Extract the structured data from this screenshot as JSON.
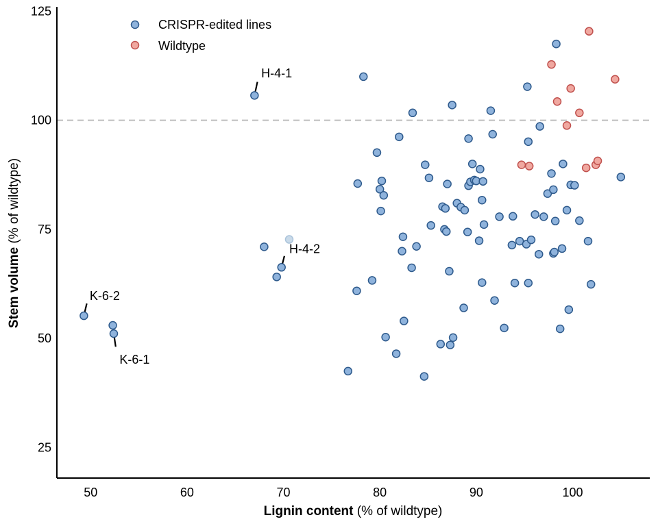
{
  "chart_data": {
    "type": "scatter",
    "xlabel_bold": "Lignin content",
    "xlabel_rest": " (% of wildtype)",
    "ylabel_bold": "Stem volume",
    "ylabel_rest": " (% of wildtype)",
    "xlim": [
      46.5,
      108
    ],
    "ylim": [
      18,
      126
    ],
    "xticks": [
      50,
      60,
      70,
      80,
      90,
      100
    ],
    "yticks": [
      25,
      50,
      75,
      100,
      125
    ],
    "reference_line_y": 100,
    "legend_position": "top-left",
    "series": [
      {
        "name": "CRISPR-edited lines",
        "color": "#8fb3dc",
        "edge": "#2e5a8c",
        "points": [
          [
            49.3,
            55.2
          ],
          [
            52.3,
            53.0
          ],
          [
            52.4,
            51.1
          ],
          [
            67.0,
            105.7
          ],
          [
            68.0,
            71.0
          ],
          [
            69.3,
            64.1
          ],
          [
            69.8,
            66.3
          ],
          [
            76.7,
            42.5
          ],
          [
            77.6,
            60.9
          ],
          [
            77.7,
            85.5
          ],
          [
            78.3,
            110.0
          ],
          [
            79.2,
            63.3
          ],
          [
            79.7,
            92.6
          ],
          [
            80.0,
            84.2
          ],
          [
            80.1,
            79.2
          ],
          [
            80.2,
            86.1
          ],
          [
            80.4,
            82.8
          ],
          [
            80.6,
            50.3
          ],
          [
            81.7,
            46.5
          ],
          [
            82.0,
            96.2
          ],
          [
            82.3,
            70.0
          ],
          [
            82.4,
            73.3
          ],
          [
            82.5,
            54.0
          ],
          [
            83.3,
            66.2
          ],
          [
            83.4,
            101.7
          ],
          [
            83.8,
            71.1
          ],
          [
            84.6,
            41.3
          ],
          [
            84.7,
            89.8
          ],
          [
            85.1,
            86.8
          ],
          [
            85.3,
            75.9
          ],
          [
            86.3,
            48.7
          ],
          [
            86.5,
            80.2
          ],
          [
            86.7,
            75.0
          ],
          [
            86.8,
            79.8
          ],
          [
            86.9,
            74.5
          ],
          [
            87.0,
            85.4
          ],
          [
            87.2,
            65.4
          ],
          [
            87.3,
            48.5
          ],
          [
            87.5,
            103.5
          ],
          [
            87.6,
            50.2
          ],
          [
            88.0,
            81.0
          ],
          [
            88.4,
            80.1
          ],
          [
            88.7,
            57.0
          ],
          [
            88.8,
            79.4
          ],
          [
            89.1,
            74.4
          ],
          [
            89.2,
            95.8
          ],
          [
            89.2,
            85.0
          ],
          [
            89.4,
            85.9
          ],
          [
            89.6,
            90.0
          ],
          [
            89.8,
            86.3
          ],
          [
            90.0,
            86.1
          ],
          [
            90.3,
            72.4
          ],
          [
            90.4,
            88.8
          ],
          [
            90.6,
            81.7
          ],
          [
            90.6,
            62.8
          ],
          [
            90.7,
            86.0
          ],
          [
            90.8,
            76.1
          ],
          [
            91.5,
            102.2
          ],
          [
            91.7,
            96.8
          ],
          [
            91.9,
            58.7
          ],
          [
            92.4,
            77.9
          ],
          [
            92.9,
            52.4
          ],
          [
            93.7,
            71.4
          ],
          [
            93.8,
            78.0
          ],
          [
            94.0,
            62.7
          ],
          [
            94.5,
            72.3
          ],
          [
            95.2,
            71.6
          ],
          [
            95.3,
            107.7
          ],
          [
            95.4,
            95.1
          ],
          [
            95.4,
            62.7
          ],
          [
            95.7,
            72.6
          ],
          [
            96.1,
            78.4
          ],
          [
            96.5,
            69.3
          ],
          [
            96.6,
            98.6
          ],
          [
            97.0,
            77.9
          ],
          [
            97.4,
            83.2
          ],
          [
            97.8,
            87.8
          ],
          [
            98.0,
            84.1
          ],
          [
            98.0,
            69.5
          ],
          [
            98.1,
            69.8
          ],
          [
            98.2,
            76.9
          ],
          [
            98.3,
            117.5
          ],
          [
            98.7,
            52.2
          ],
          [
            98.9,
            70.6
          ],
          [
            99.0,
            90.0
          ],
          [
            99.4,
            79.4
          ],
          [
            99.6,
            56.6
          ],
          [
            99.8,
            85.2
          ],
          [
            100.2,
            85.1
          ],
          [
            100.7,
            77.0
          ],
          [
            101.6,
            72.3
          ],
          [
            101.9,
            62.4
          ],
          [
            105.0,
            87.0
          ]
        ]
      },
      {
        "name": "Wildtype",
        "color": "#f0a8a0",
        "edge": "#c0504d",
        "points": [
          [
            94.7,
            89.8
          ],
          [
            95.5,
            89.5
          ],
          [
            97.8,
            112.8
          ],
          [
            98.4,
            104.3
          ],
          [
            99.4,
            98.8
          ],
          [
            99.8,
            107.3
          ],
          [
            100.7,
            101.7
          ],
          [
            101.4,
            89.1
          ],
          [
            101.7,
            120.4
          ],
          [
            102.4,
            89.8
          ],
          [
            102.6,
            90.7
          ],
          [
            104.4,
            109.4
          ]
        ]
      }
    ],
    "faded_point": [
      70.6,
      72.7
    ],
    "annotations": [
      {
        "label": "H-4-1",
        "point": [
          67.0,
          105.7
        ],
        "line_to": [
          67.3,
          108.8
        ],
        "text_at": [
          67.7,
          109.8
        ],
        "anchor": "start"
      },
      {
        "label": "H-4-2",
        "point": [
          69.8,
          66.3
        ],
        "line_to": [
          70.1,
          68.9
        ],
        "text_at": [
          70.6,
          69.6
        ],
        "anchor": "start"
      },
      {
        "label": "K-6-2",
        "point": [
          49.3,
          55.2
        ],
        "line_to": [
          49.6,
          58.0
        ],
        "text_at": [
          49.9,
          58.8
        ],
        "anchor": "start"
      },
      {
        "label": "K-6-1",
        "point": [
          52.4,
          51.1
        ],
        "line_to": [
          52.6,
          48.1
        ],
        "text_at": [
          53.0,
          46.4
        ],
        "anchor": "start"
      }
    ]
  }
}
